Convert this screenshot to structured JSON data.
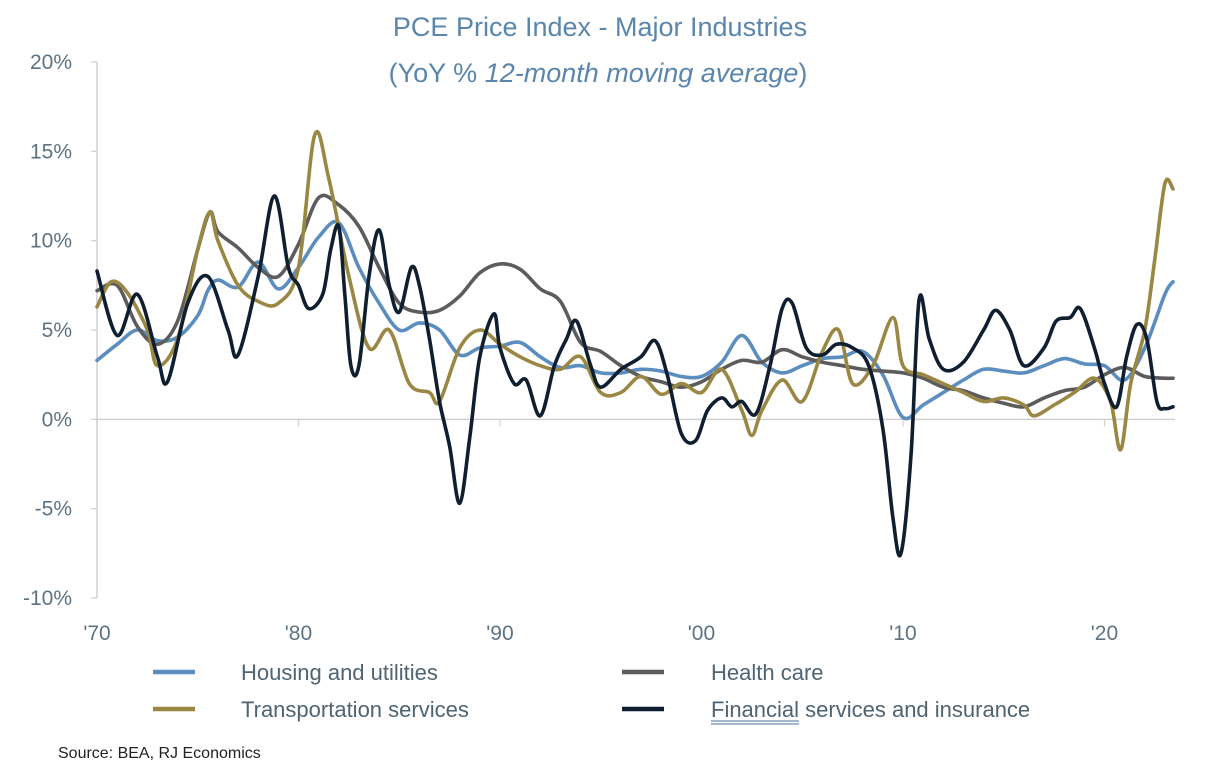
{
  "chart_data": {
    "type": "line",
    "title": "PCE Price Index - Major Industries",
    "subtitle_prefix": "(YoY % ",
    "subtitle_italic": "12-month moving average",
    "subtitle_suffix": ")",
    "xlim": [
      1970,
      2023.5
    ],
    "ylim": [
      -10,
      20
    ],
    "y_ticks": [
      {
        "value": 20,
        "label": "20%"
      },
      {
        "value": 15,
        "label": "15%"
      },
      {
        "value": 10,
        "label": "10%"
      },
      {
        "value": 5,
        "label": "5%"
      },
      {
        "value": 0,
        "label": "0%"
      },
      {
        "value": -5,
        "label": "-5%"
      },
      {
        "value": -10,
        "label": "-10%"
      }
    ],
    "x_ticks": [
      {
        "value": 1970,
        "label": "'70"
      },
      {
        "value": 1980,
        "label": "'80"
      },
      {
        "value": 1990,
        "label": "'90"
      },
      {
        "value": 2000,
        "label": "'00"
      },
      {
        "value": 2010,
        "label": "'10"
      },
      {
        "value": 2020,
        "label": "'20"
      }
    ],
    "grid": false,
    "legend_placement": "bottom",
    "source": "Source: BEA, RJ Economics",
    "series": [
      {
        "name": "Housing and utilities",
        "color": "#5b8dbf",
        "points": [
          [
            1970,
            3.3
          ],
          [
            1971,
            4.2
          ],
          [
            1972,
            5.0
          ],
          [
            1973,
            4.4
          ],
          [
            1974,
            4.6
          ],
          [
            1975,
            5.8
          ],
          [
            1975.5,
            7.2
          ],
          [
            1976,
            7.8
          ],
          [
            1977,
            7.4
          ],
          [
            1978,
            8.8
          ],
          [
            1979,
            7.3
          ],
          [
            1980,
            8.5
          ],
          [
            1981,
            10.2
          ],
          [
            1982,
            11.0
          ],
          [
            1983,
            8.5
          ],
          [
            1984,
            6.5
          ],
          [
            1985,
            5.0
          ],
          [
            1986,
            5.4
          ],
          [
            1987,
            5.0
          ],
          [
            1988,
            3.6
          ],
          [
            1989,
            4.0
          ],
          [
            1990,
            4.1
          ],
          [
            1991,
            4.3
          ],
          [
            1992,
            3.5
          ],
          [
            1993,
            2.9
          ],
          [
            1994,
            3.0
          ],
          [
            1995,
            2.6
          ],
          [
            1996,
            2.6
          ],
          [
            1997,
            2.8
          ],
          [
            1998,
            2.7
          ],
          [
            1999,
            2.4
          ],
          [
            2000,
            2.4
          ],
          [
            2001,
            3.2
          ],
          [
            2002,
            4.7
          ],
          [
            2003,
            3.2
          ],
          [
            2004,
            2.6
          ],
          [
            2005,
            3.0
          ],
          [
            2006,
            3.4
          ],
          [
            2007,
            3.5
          ],
          [
            2008,
            3.8
          ],
          [
            2009,
            2.5
          ],
          [
            2010,
            0.1
          ],
          [
            2011,
            0.8
          ],
          [
            2012,
            1.5
          ],
          [
            2013,
            2.2
          ],
          [
            2014,
            2.8
          ],
          [
            2015,
            2.7
          ],
          [
            2016,
            2.6
          ],
          [
            2017,
            3.0
          ],
          [
            2018,
            3.4
          ],
          [
            2019,
            3.1
          ],
          [
            2020,
            3.0
          ],
          [
            2021,
            2.2
          ],
          [
            2022,
            4.0
          ],
          [
            2023,
            7.0
          ],
          [
            2023.4,
            7.7
          ]
        ]
      },
      {
        "name": "Health care",
        "color": "#5c5c5c",
        "points": [
          [
            1970,
            7.2
          ],
          [
            1971,
            7.5
          ],
          [
            1972,
            5.2
          ],
          [
            1973,
            4.2
          ],
          [
            1974,
            5.5
          ],
          [
            1975,
            9.5
          ],
          [
            1975.6,
            11.6
          ],
          [
            1976,
            10.5
          ],
          [
            1977,
            9.6
          ],
          [
            1978,
            8.5
          ],
          [
            1979,
            8.0
          ],
          [
            1980,
            9.8
          ],
          [
            1981,
            12.4
          ],
          [
            1982,
            12.0
          ],
          [
            1983,
            10.8
          ],
          [
            1984,
            8.5
          ],
          [
            1985,
            6.5
          ],
          [
            1986,
            6.0
          ],
          [
            1987,
            6.1
          ],
          [
            1988,
            6.9
          ],
          [
            1989,
            8.2
          ],
          [
            1990,
            8.7
          ],
          [
            1991,
            8.4
          ],
          [
            1992,
            7.3
          ],
          [
            1993,
            6.6
          ],
          [
            1994,
            4.3
          ],
          [
            1995,
            3.8
          ],
          [
            1996,
            3.0
          ],
          [
            1997,
            2.4
          ],
          [
            1998,
            2.1
          ],
          [
            1999,
            1.8
          ],
          [
            2000,
            2.1
          ],
          [
            2001,
            2.8
          ],
          [
            2002,
            3.3
          ],
          [
            2003,
            3.2
          ],
          [
            2004,
            3.9
          ],
          [
            2005,
            3.5
          ],
          [
            2006,
            3.2
          ],
          [
            2007,
            3.0
          ],
          [
            2008,
            2.8
          ],
          [
            2009,
            2.7
          ],
          [
            2010,
            2.6
          ],
          [
            2011,
            2.3
          ],
          [
            2012,
            1.8
          ],
          [
            2013,
            1.6
          ],
          [
            2014,
            1.2
          ],
          [
            2015,
            0.9
          ],
          [
            2016,
            0.7
          ],
          [
            2017,
            1.2
          ],
          [
            2018,
            1.6
          ],
          [
            2019,
            1.8
          ],
          [
            2020,
            2.5
          ],
          [
            2021,
            2.9
          ],
          [
            2022,
            2.4
          ],
          [
            2023,
            2.3
          ],
          [
            2023.4,
            2.3
          ]
        ]
      },
      {
        "name": "Transportation services",
        "color": "#9a8744",
        "points": [
          [
            1970,
            6.3
          ],
          [
            1970.7,
            7.7
          ],
          [
            1971.5,
            7.1
          ],
          [
            1972.5,
            5.0
          ],
          [
            1973,
            3.0
          ],
          [
            1974,
            4.5
          ],
          [
            1975,
            9.5
          ],
          [
            1975.6,
            11.6
          ],
          [
            1976,
            10.0
          ],
          [
            1977,
            7.5
          ],
          [
            1978,
            6.6
          ],
          [
            1979,
            6.5
          ],
          [
            1980,
            8.5
          ],
          [
            1980.8,
            15.9
          ],
          [
            1981.5,
            13.5
          ],
          [
            1982.5,
            8.0
          ],
          [
            1983.5,
            4.0
          ],
          [
            1984.5,
            5.0
          ],
          [
            1985.5,
            2.0
          ],
          [
            1986.5,
            1.5
          ],
          [
            1987,
            1.0
          ],
          [
            1988,
            4.0
          ],
          [
            1989,
            5.0
          ],
          [
            1990,
            4.2
          ],
          [
            1991,
            3.5
          ],
          [
            1992,
            3.0
          ],
          [
            1993,
            2.8
          ],
          [
            1994,
            3.5
          ],
          [
            1995,
            1.5
          ],
          [
            1996,
            1.5
          ],
          [
            1997,
            2.4
          ],
          [
            1998,
            1.4
          ],
          [
            1999,
            2.0
          ],
          [
            2000,
            1.5
          ],
          [
            2001,
            2.8
          ],
          [
            2002,
            0.5
          ],
          [
            2002.5,
            -0.9
          ],
          [
            2003,
            0.5
          ],
          [
            2004,
            2.2
          ],
          [
            2005,
            1.0
          ],
          [
            2006,
            3.8
          ],
          [
            2006.8,
            5.0
          ],
          [
            2007.5,
            2.0
          ],
          [
            2008.5,
            3.0
          ],
          [
            2009.5,
            5.7
          ],
          [
            2010,
            3.0
          ],
          [
            2011,
            2.5
          ],
          [
            2012,
            2.0
          ],
          [
            2013,
            1.5
          ],
          [
            2014,
            1.0
          ],
          [
            2015,
            1.2
          ],
          [
            2016,
            0.8
          ],
          [
            2016.5,
            0.2
          ],
          [
            2017.5,
            0.8
          ],
          [
            2018.5,
            1.5
          ],
          [
            2019.5,
            2.3
          ],
          [
            2020.3,
            1.0
          ],
          [
            2020.8,
            -1.7
          ],
          [
            2021.3,
            2.0
          ],
          [
            2022,
            5.0
          ],
          [
            2022.5,
            9.0
          ],
          [
            2023,
            13.2
          ],
          [
            2023.4,
            12.9
          ]
        ]
      },
      {
        "name": "Financial services and insurance",
        "name_underlined": "Financial",
        "name_rest": " services and insurance",
        "color": "#0f1f30",
        "points": [
          [
            1970,
            8.3
          ],
          [
            1971,
            4.7
          ],
          [
            1972,
            7.0
          ],
          [
            1973,
            3.5
          ],
          [
            1973.5,
            2.1
          ],
          [
            1974.5,
            6.5
          ],
          [
            1975.5,
            8.0
          ],
          [
            1976.5,
            5.0
          ],
          [
            1977,
            3.6
          ],
          [
            1978,
            8.0
          ],
          [
            1978.8,
            12.5
          ],
          [
            1979.5,
            8.5
          ],
          [
            1980,
            7.5
          ],
          [
            1980.5,
            6.2
          ],
          [
            1981.2,
            7.0
          ],
          [
            1981.6,
            9.5
          ],
          [
            1982,
            10.8
          ],
          [
            1982.3,
            7.0
          ],
          [
            1982.6,
            3.0
          ],
          [
            1983,
            3.0
          ],
          [
            1983.5,
            8.0
          ],
          [
            1984,
            10.6
          ],
          [
            1984.5,
            7.5
          ],
          [
            1985,
            6.0
          ],
          [
            1985.6,
            8.5
          ],
          [
            1986,
            7.5
          ],
          [
            1986.5,
            4.5
          ],
          [
            1987,
            1.0
          ],
          [
            1987.5,
            -1.5
          ],
          [
            1988,
            -4.7
          ],
          [
            1988.5,
            -1.0
          ],
          [
            1989,
            3.5
          ],
          [
            1989.7,
            5.9
          ],
          [
            1990,
            4.0
          ],
          [
            1990.7,
            2.0
          ],
          [
            1991.3,
            2.2
          ],
          [
            1992,
            0.2
          ],
          [
            1992.7,
            3.0
          ],
          [
            1993.3,
            4.5
          ],
          [
            1993.8,
            5.5
          ],
          [
            1994.5,
            3.0
          ],
          [
            1995,
            1.8
          ],
          [
            1996,
            2.8
          ],
          [
            1997,
            3.5
          ],
          [
            1997.7,
            4.4
          ],
          [
            1998.3,
            2.5
          ],
          [
            1999,
            -0.8
          ],
          [
            1999.7,
            -1.2
          ],
          [
            2000.3,
            0.5
          ],
          [
            2001,
            1.2
          ],
          [
            2001.5,
            0.7
          ],
          [
            2002,
            1.0
          ],
          [
            2002.7,
            0.3
          ],
          [
            2003.4,
            3.0
          ],
          [
            2004,
            6.2
          ],
          [
            2004.5,
            6.5
          ],
          [
            2005.2,
            4.0
          ],
          [
            2006,
            3.6
          ],
          [
            2006.7,
            4.2
          ],
          [
            2007.5,
            4.0
          ],
          [
            2008.3,
            3.0
          ],
          [
            2009,
            -0.5
          ],
          [
            2009.5,
            -5.5
          ],
          [
            2009.9,
            -7.5
          ],
          [
            2010.4,
            -2.0
          ],
          [
            2010.8,
            6.7
          ],
          [
            2011.3,
            4.5
          ],
          [
            2012,
            2.8
          ],
          [
            2013,
            3.2
          ],
          [
            2014,
            5.0
          ],
          [
            2014.6,
            6.1
          ],
          [
            2015.3,
            5.0
          ],
          [
            2016,
            3.0
          ],
          [
            2017,
            4.0
          ],
          [
            2017.6,
            5.5
          ],
          [
            2018.3,
            5.7
          ],
          [
            2018.8,
            6.2
          ],
          [
            2019.5,
            4.0
          ],
          [
            2020,
            2.0
          ],
          [
            2020.6,
            0.7
          ],
          [
            2021.1,
            3.5
          ],
          [
            2021.6,
            5.3
          ],
          [
            2022.1,
            4.5
          ],
          [
            2022.6,
            1.0
          ],
          [
            2023,
            0.6
          ],
          [
            2023.4,
            0.7
          ]
        ]
      }
    ]
  }
}
